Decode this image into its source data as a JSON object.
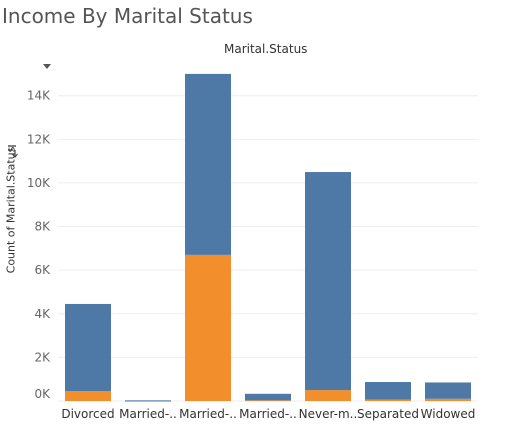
{
  "title": "Income By Marital Status",
  "column_header": "Marital.Status",
  "icons": {
    "sort": "sort-icon",
    "menu": "chevron-down-icon"
  },
  "colors": {
    "upper": "#4e79a7",
    "lower": "#f28e2b",
    "grid": "#eeeeee"
  },
  "chart_data": {
    "type": "bar",
    "stacked": true,
    "categories": [
      "Divorced",
      "Married-..",
      "Married-..",
      "Married-..",
      "Never-m..",
      "Separated",
      "Widowed"
    ],
    "series": [
      {
        "values": [
          4000,
          20,
          8300,
          300,
          10000,
          800,
          750
        ]
      },
      {
        "values": [
          450,
          10,
          6700,
          30,
          500,
          70,
          100
        ]
      }
    ],
    "y_ticks": [
      0,
      2000,
      4000,
      6000,
      8000,
      10000,
      12000,
      14000
    ],
    "y_tick_labels": [
      "0K",
      "2K",
      "4K",
      "6K",
      "8K",
      "10K",
      "12K",
      "14K"
    ],
    "ylabel": "Count of Marital.Status",
    "xlabel": "",
    "ylim": [
      0,
      15500
    ],
    "grid": true,
    "legend": "none"
  }
}
